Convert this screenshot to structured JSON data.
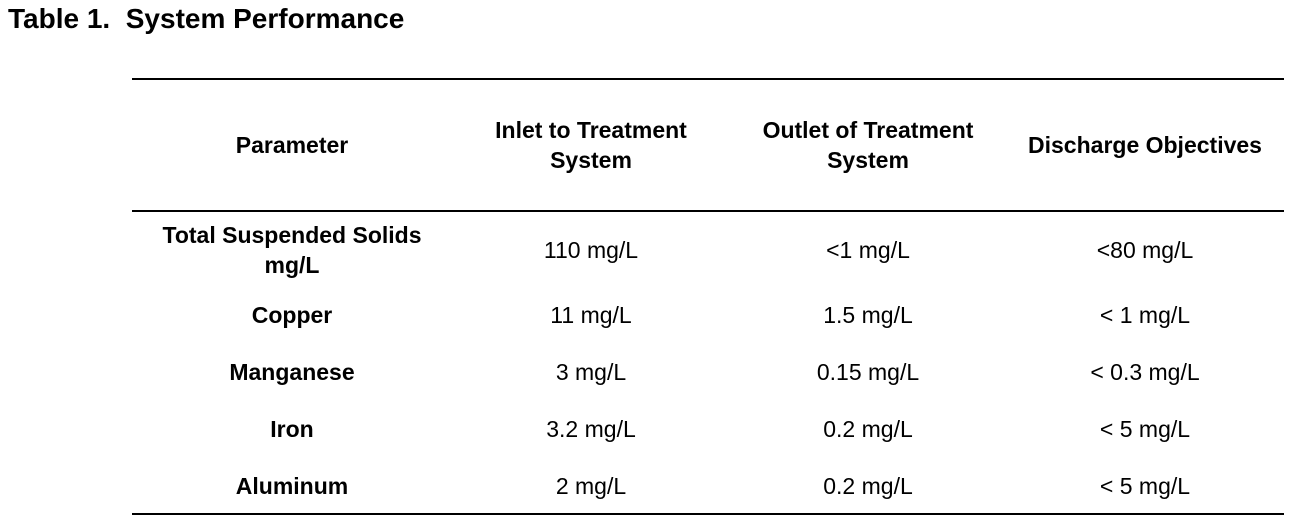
{
  "header": {
    "title": "Table 1.  System Performance"
  },
  "table": {
    "columns": [
      "Parameter",
      "Inlet to Treatment System",
      "Outlet of Treatment System",
      "Discharge Objectives"
    ],
    "rows": [
      [
        "Total Suspended Solids mg/L",
        "110 mg/L",
        "<1 mg/L",
        "<80 mg/L"
      ],
      [
        "Copper",
        "11 mg/L",
        "1.5 mg/L",
        "< 1 mg/L"
      ],
      [
        "Manganese",
        "3 mg/L",
        "0.15 mg/L",
        "< 0.3 mg/L"
      ],
      [
        "Iron",
        "3.2 mg/L",
        "0.2 mg/L",
        "< 5 mg/L"
      ],
      [
        "Aluminum",
        "2 mg/L",
        "0.2 mg/L",
        "< 5 mg/L"
      ]
    ]
  }
}
